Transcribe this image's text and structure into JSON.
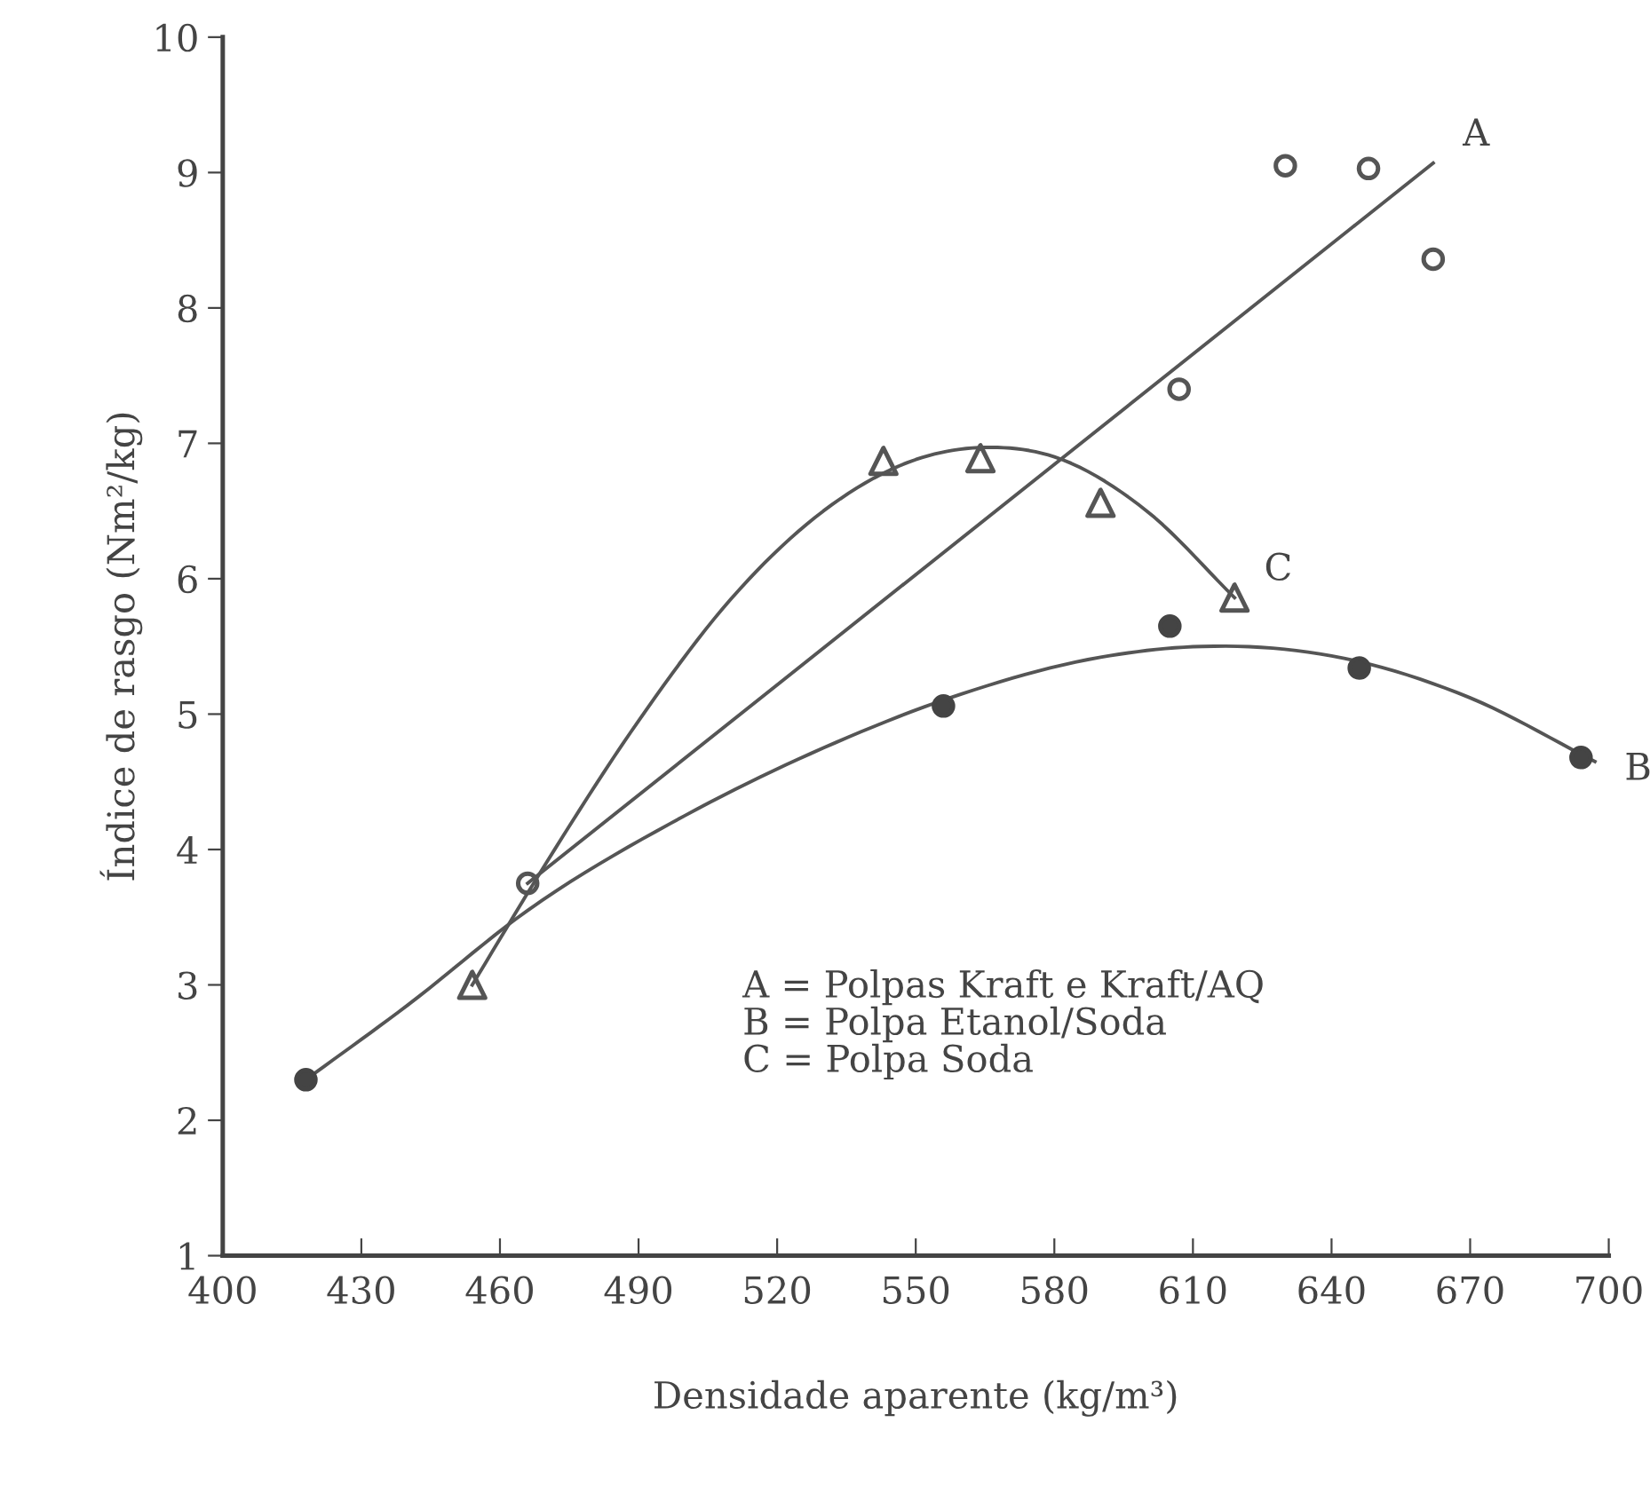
{
  "chart_data": {
    "type": "scatter",
    "xlabel": "Densidade aparente (kg/m³)",
    "ylabel": "Índice de rasgo (Nm²/kg)",
    "xlim": [
      400,
      700
    ],
    "ylim": [
      1,
      10
    ],
    "xticks": [
      400,
      430,
      460,
      490,
      520,
      550,
      580,
      610,
      640,
      670,
      700
    ],
    "yticks": [
      1,
      2,
      3,
      4,
      5,
      6,
      7,
      8,
      9,
      10
    ],
    "grid": false,
    "legend": false,
    "marker": "none",
    "line_style": "solid",
    "series": [
      {
        "marker": "circle",
        "color": "#555555",
        "x": [
          466,
          607,
          630,
          648,
          662
        ],
        "values": [
          3.75,
          7.4,
          9.05,
          9.03,
          8.36
        ]
      },
      {
        "marker": "circle",
        "color": "#444444",
        "x": [
          418,
          556,
          605,
          646,
          694
        ],
        "values": [
          2.3,
          5.06,
          5.65,
          5.34,
          4.68
        ]
      },
      {
        "marker": "triangle",
        "color": "#555555",
        "x": [
          454,
          543,
          564,
          590,
          619
        ],
        "values": [
          3.0,
          6.87,
          6.89,
          6.56,
          5.86
        ]
      },
      {
        "type": "line",
        "name": "A",
        "color": "#555555",
        "x": [
          466,
          662
        ],
        "values": [
          3.75,
          9.07
        ]
      },
      {
        "type": "line",
        "name": "B",
        "color": "#555555",
        "x": [
          418,
          440,
          466,
          500,
          530,
          560,
          590,
          612,
          640,
          670,
          697
        ],
        "values": [
          2.3,
          2.85,
          3.55,
          4.25,
          4.75,
          5.15,
          5.42,
          5.5,
          5.43,
          5.12,
          4.65
        ]
      },
      {
        "type": "line",
        "name": "C",
        "color": "#555555",
        "x": [
          454,
          470,
          490,
          510,
          530,
          550,
          565,
          580,
          600,
          619
        ],
        "values": [
          3.0,
          3.9,
          4.95,
          5.85,
          6.5,
          6.88,
          6.97,
          6.9,
          6.5,
          5.86
        ]
      }
    ],
    "annotations": [
      "A = Polpas Kraft e Kraft/AQ\nB = Polpa Etanol/Soda\nC = Polpa Soda"
    ]
  }
}
